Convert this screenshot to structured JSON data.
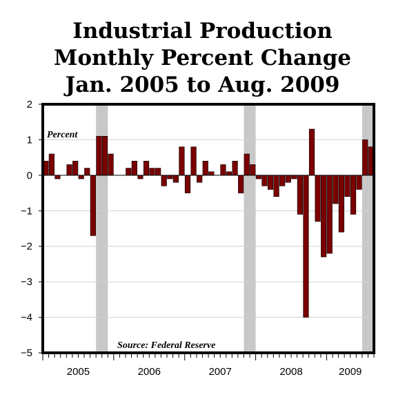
{
  "chart_data": {
    "type": "bar",
    "title": [
      "Industrial Production",
      "Monthly Percent Change",
      "Jan. 2005 to Aug. 2009"
    ],
    "ylabel": "Percent",
    "source": "Source: Federal Reserve",
    "ylim": [
      -5,
      2
    ],
    "yticks": [
      2,
      1,
      0,
      -1,
      -2,
      -3,
      -4,
      -5
    ],
    "ytick_labels": [
      "2",
      "1",
      "0",
      "−1",
      "−2",
      "−3",
      "−4",
      "−5"
    ],
    "year_labels": [
      "2005",
      "2006",
      "2007",
      "2008",
      "2009"
    ],
    "months_count": 56,
    "values": [
      0.4,
      0.6,
      -0.1,
      0.0,
      0.3,
      0.4,
      -0.1,
      0.2,
      -1.7,
      1.1,
      1.1,
      0.6,
      0.0,
      0.0,
      0.2,
      0.4,
      -0.1,
      0.4,
      0.2,
      0.2,
      -0.3,
      -0.1,
      -0.2,
      0.8,
      -0.5,
      0.8,
      -0.2,
      0.4,
      0.1,
      0.0,
      0.3,
      0.1,
      0.4,
      -0.5,
      0.6,
      0.3,
      -0.1,
      -0.3,
      -0.4,
      -0.6,
      -0.3,
      -0.2,
      -0.1,
      -1.1,
      -4.0,
      1.3,
      -1.3,
      -2.3,
      -2.2,
      -0.8,
      -1.6,
      -0.6,
      -1.1,
      -0.4,
      1.0,
      0.8
    ],
    "recession_shading": [
      [
        9,
        11
      ],
      [
        34,
        36
      ],
      [
        54,
        56
      ]
    ],
    "grid": true,
    "colors": {
      "bar": "#7a0000",
      "bar_edge": "#000000",
      "shade": "#c8c8c8",
      "grid": "#d0d0d0",
      "frame": "#000000"
    }
  }
}
